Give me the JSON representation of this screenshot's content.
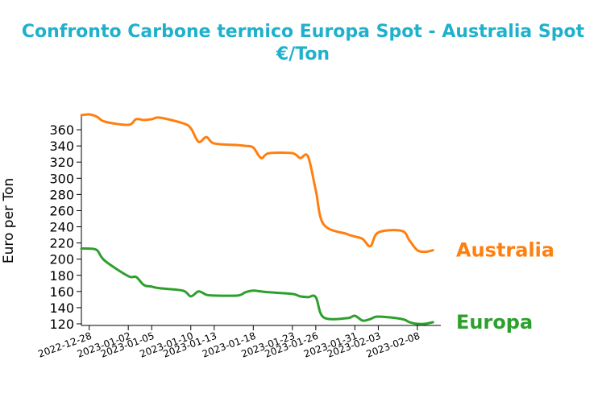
{
  "chart_data": {
    "type": "line",
    "title_line1": "Confronto Carbone termico Europa Spot - Australia Spot",
    "title_line2": "€/Ton",
    "xlabel": "",
    "ylabel": "Euro per Ton",
    "ylim": [
      118,
      378
    ],
    "yticks": [
      120,
      140,
      160,
      180,
      200,
      220,
      240,
      260,
      280,
      300,
      320,
      340,
      360
    ],
    "xlim": [
      "2022-12-27",
      "2023-02-11"
    ],
    "xticks": [
      "2022-12-28",
      "2023-01-02",
      "2023-01-05",
      "2023-01-10",
      "2023-01-13",
      "2023-01-18",
      "2023-01-23",
      "2023-01-26",
      "2023-01-31",
      "2023-02-03",
      "2023-02-08"
    ],
    "grid": false,
    "legend": "none",
    "title_color": "#1fb1cc",
    "series": [
      {
        "name": "Australia",
        "color": "#ff7f0e",
        "x": [
          "2022-12-27",
          "2022-12-28",
          "2022-12-29",
          "2022-12-30",
          "2023-01-02",
          "2023-01-03",
          "2023-01-04",
          "2023-01-05",
          "2023-01-06",
          "2023-01-09",
          "2023-01-10",
          "2023-01-11",
          "2023-01-12",
          "2023-01-13",
          "2023-01-16",
          "2023-01-17",
          "2023-01-18",
          "2023-01-19",
          "2023-01-20",
          "2023-01-23",
          "2023-01-24",
          "2023-01-25",
          "2023-01-26",
          "2023-01-27",
          "2023-01-30",
          "2023-01-31",
          "2023-02-01",
          "2023-02-02",
          "2023-02-03",
          "2023-02-06",
          "2023-02-07",
          "2023-02-08",
          "2023-02-09",
          "2023-02-10"
        ],
        "values": [
          378,
          379,
          376,
          370,
          366,
          373,
          372,
          373,
          375,
          368,
          362,
          345,
          351,
          343,
          341,
          340,
          338,
          325,
          331,
          331,
          325,
          327,
          285,
          243,
          231,
          228,
          225,
          216,
          233,
          235,
          223,
          211,
          209,
          211
        ]
      },
      {
        "name": "Europa",
        "color": "#2ca02c",
        "x": [
          "2022-12-27",
          "2022-12-28",
          "2022-12-29",
          "2022-12-30",
          "2023-01-02",
          "2023-01-03",
          "2023-01-04",
          "2023-01-05",
          "2023-01-06",
          "2023-01-09",
          "2023-01-10",
          "2023-01-11",
          "2023-01-12",
          "2023-01-13",
          "2023-01-16",
          "2023-01-17",
          "2023-01-18",
          "2023-01-19",
          "2023-01-20",
          "2023-01-23",
          "2023-01-24",
          "2023-01-25",
          "2023-01-26",
          "2023-01-27",
          "2023-01-30",
          "2023-01-31",
          "2023-02-01",
          "2023-02-02",
          "2023-02-03",
          "2023-02-06",
          "2023-02-07",
          "2023-02-08",
          "2023-02-09",
          "2023-02-10"
        ],
        "values": [
          213,
          213,
          211,
          198,
          179,
          178,
          168,
          166,
          164,
          161,
          154,
          160,
          156,
          155,
          155,
          159,
          161,
          160,
          159,
          157,
          154,
          153,
          153,
          128,
          127,
          130,
          124,
          126,
          129,
          126,
          122,
          120,
          120,
          122
        ]
      }
    ]
  }
}
